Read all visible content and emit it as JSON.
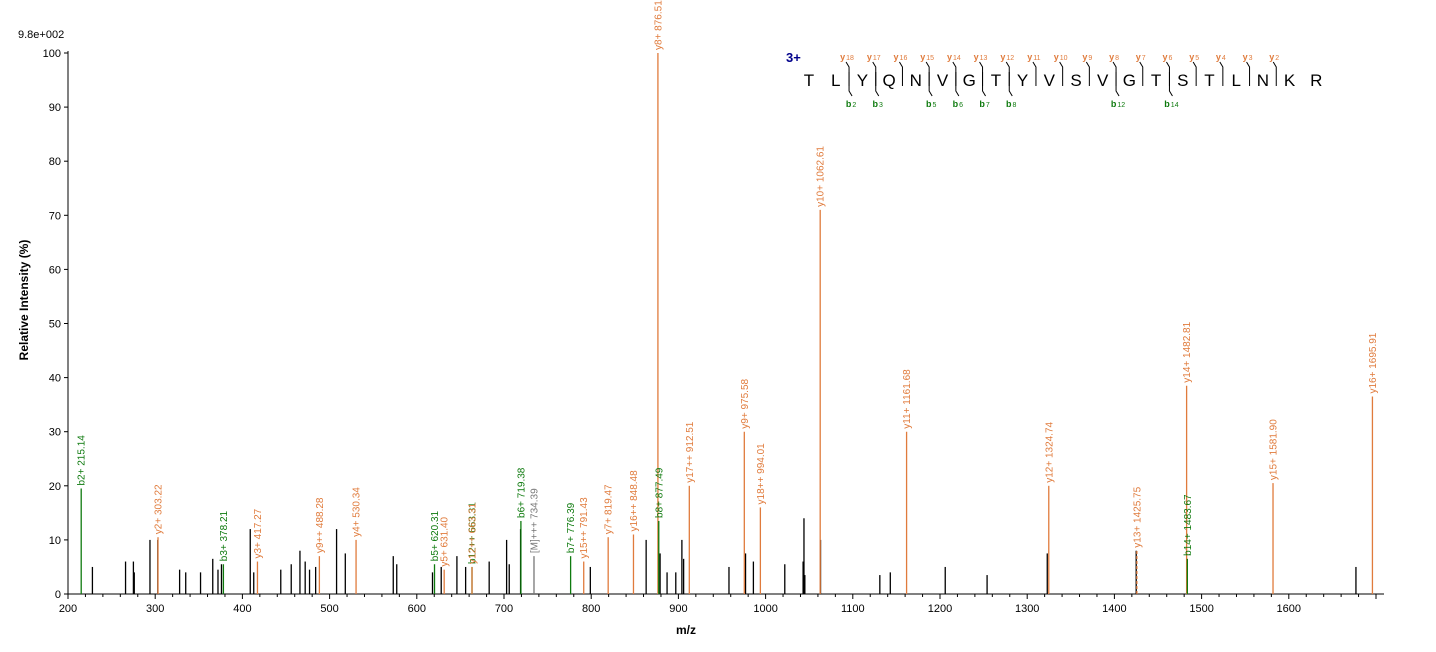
{
  "chart_data": {
    "type": "bar",
    "ylabel": "Relative   Intensity (%)",
    "xlabel": "m/z",
    "scale_label": "9.8e+002",
    "xlim": [
      200,
      1700
    ],
    "ylim": [
      0,
      100
    ],
    "x_ticks": [
      200,
      300,
      400,
      500,
      600,
      700,
      800,
      900,
      1000,
      1100,
      1200,
      1300,
      1400,
      1500,
      1600
    ],
    "y_ticks": [
      0,
      10,
      20,
      30,
      40,
      50,
      60,
      70,
      80,
      90,
      100
    ],
    "colors": {
      "y_ion": "#e07b3c",
      "b_ion": "#0e7a0e",
      "other": "#000000",
      "precursor": "#777777",
      "charge": "#00008b"
    },
    "annotated_peaks": [
      {
        "mz": 215.14,
        "intensity": 19.5,
        "type": "b",
        "label": "b2+ 215.14"
      },
      {
        "mz": 303.22,
        "intensity": 10.5,
        "type": "y",
        "label": "y2+ 303.22"
      },
      {
        "mz": 378.21,
        "intensity": 5.5,
        "type": "b",
        "label": "b3+ 378.21"
      },
      {
        "mz": 417.27,
        "intensity": 6.0,
        "type": "y",
        "label": "y3+ 417.27"
      },
      {
        "mz": 488.28,
        "intensity": 7.0,
        "type": "y",
        "label": "y9++ 488.28"
      },
      {
        "mz": 530.34,
        "intensity": 10.0,
        "type": "y",
        "label": "y4+ 530.34"
      },
      {
        "mz": 620.31,
        "intensity": 5.5,
        "type": "b",
        "label": "b5+ 620.31"
      },
      {
        "mz": 631.4,
        "intensity": 4.5,
        "type": "y",
        "label": "y5+ 631.40"
      },
      {
        "mz": 663.31,
        "intensity": 5.0,
        "type": "b",
        "label": "b12++ 663.31"
      },
      {
        "mz": 663.31,
        "intensity": 5.0,
        "type": "y",
        "label": "y12++ 663.31"
      },
      {
        "mz": 719.38,
        "intensity": 13.5,
        "type": "b",
        "label": "b6+ 719.38"
      },
      {
        "mz": 734.39,
        "intensity": 7.0,
        "type": "m",
        "label": "[M]+++ 734.39"
      },
      {
        "mz": 776.39,
        "intensity": 7.0,
        "type": "b",
        "label": "b7+ 776.39"
      },
      {
        "mz": 791.43,
        "intensity": 6.0,
        "type": "y",
        "label": "y15++ 791.43"
      },
      {
        "mz": 819.47,
        "intensity": 10.5,
        "type": "y",
        "label": "y7+ 819.47"
      },
      {
        "mz": 848.48,
        "intensity": 11.0,
        "type": "y",
        "label": "y16++ 848.48"
      },
      {
        "mz": 876.51,
        "intensity": 100,
        "type": "y",
        "label": "y8+ 876.51"
      },
      {
        "mz": 877.49,
        "intensity": 13.5,
        "type": "b",
        "label": "b8+ 877.49"
      },
      {
        "mz": 912.51,
        "intensity": 20.0,
        "type": "y",
        "label": "y17++ 912.51"
      },
      {
        "mz": 975.58,
        "intensity": 30.0,
        "type": "y",
        "label": "y9+ 975.58"
      },
      {
        "mz": 994.01,
        "intensity": 16.0,
        "type": "y",
        "label": "y18++ 994.01"
      },
      {
        "mz": 1062.61,
        "intensity": 71.0,
        "type": "y",
        "label": "y10+ 1062.61"
      },
      {
        "mz": 1161.68,
        "intensity": 30.0,
        "type": "y",
        "label": "y11+ 1161.68"
      },
      {
        "mz": 1324.74,
        "intensity": 20.0,
        "type": "y",
        "label": "y12+ 1324.74"
      },
      {
        "mz": 1425.75,
        "intensity": 8.0,
        "type": "y",
        "label": "y13+ 1425.75"
      },
      {
        "mz": 1482.81,
        "intensity": 38.5,
        "type": "y",
        "label": "y14+ 1482.81"
      },
      {
        "mz": 1483.67,
        "intensity": 6.5,
        "type": "b",
        "label": "b14+ 1483.67"
      },
      {
        "mz": 1581.9,
        "intensity": 20.5,
        "type": "y",
        "label": "y15+ 1581.90"
      },
      {
        "mz": 1695.91,
        "intensity": 36.5,
        "type": "y",
        "label": "y16+ 1695.91"
      }
    ],
    "unlabeled_peaks": [
      {
        "mz": 228,
        "intensity": 5.0
      },
      {
        "mz": 266,
        "intensity": 6.0
      },
      {
        "mz": 275,
        "intensity": 6.0
      },
      {
        "mz": 276,
        "intensity": 4.0
      },
      {
        "mz": 294,
        "intensity": 10.0
      },
      {
        "mz": 303,
        "intensity": 10.0
      },
      {
        "mz": 328,
        "intensity": 4.5
      },
      {
        "mz": 335,
        "intensity": 4.0
      },
      {
        "mz": 352,
        "intensity": 4.0
      },
      {
        "mz": 366,
        "intensity": 6.5
      },
      {
        "mz": 372,
        "intensity": 4.5
      },
      {
        "mz": 376,
        "intensity": 5.5
      },
      {
        "mz": 409,
        "intensity": 12.0
      },
      {
        "mz": 413,
        "intensity": 4.0
      },
      {
        "mz": 444,
        "intensity": 4.5
      },
      {
        "mz": 456,
        "intensity": 5.5
      },
      {
        "mz": 466,
        "intensity": 8.0
      },
      {
        "mz": 472,
        "intensity": 6.0
      },
      {
        "mz": 477,
        "intensity": 4.5
      },
      {
        "mz": 484,
        "intensity": 5.0
      },
      {
        "mz": 508,
        "intensity": 12.0
      },
      {
        "mz": 518,
        "intensity": 7.5
      },
      {
        "mz": 573,
        "intensity": 7.0
      },
      {
        "mz": 577,
        "intensity": 5.5
      },
      {
        "mz": 618,
        "intensity": 4.0
      },
      {
        "mz": 628,
        "intensity": 5.0
      },
      {
        "mz": 646,
        "intensity": 7.0
      },
      {
        "mz": 656,
        "intensity": 5.0
      },
      {
        "mz": 683,
        "intensity": 6.0
      },
      {
        "mz": 703,
        "intensity": 10.0
      },
      {
        "mz": 706,
        "intensity": 5.5
      },
      {
        "mz": 719,
        "intensity": 12.0
      },
      {
        "mz": 799,
        "intensity": 5.0
      },
      {
        "mz": 863,
        "intensity": 10.0
      },
      {
        "mz": 879,
        "intensity": 7.5
      },
      {
        "mz": 887,
        "intensity": 4.0
      },
      {
        "mz": 897,
        "intensity": 4.0
      },
      {
        "mz": 904,
        "intensity": 10.0
      },
      {
        "mz": 906,
        "intensity": 6.5
      },
      {
        "mz": 958,
        "intensity": 5.0
      },
      {
        "mz": 977,
        "intensity": 7.5
      },
      {
        "mz": 986,
        "intensity": 6.0
      },
      {
        "mz": 1022,
        "intensity": 5.5
      },
      {
        "mz": 1043,
        "intensity": 6.0
      },
      {
        "mz": 1044,
        "intensity": 14.0
      },
      {
        "mz": 1045,
        "intensity": 3.5
      },
      {
        "mz": 1063,
        "intensity": 10.0
      },
      {
        "mz": 1131,
        "intensity": 3.5
      },
      {
        "mz": 1143,
        "intensity": 4.0
      },
      {
        "mz": 1206,
        "intensity": 5.0
      },
      {
        "mz": 1254,
        "intensity": 3.5
      },
      {
        "mz": 1323,
        "intensity": 7.5
      },
      {
        "mz": 1425,
        "intensity": 8.0
      },
      {
        "mz": 1677,
        "intensity": 5.0
      }
    ],
    "sequence": {
      "charge_label": "3+",
      "residues": [
        "T",
        "L",
        "Y",
        "Q",
        "N",
        "V",
        "G",
        "T",
        "Y",
        "V",
        "S",
        "V",
        "G",
        "T",
        "S",
        "T",
        "L",
        "N",
        "K",
        "R"
      ],
      "y_ions": [
        {
          "after": 2,
          "label": "y",
          "sub": "18"
        },
        {
          "after": 3,
          "label": "y",
          "sub": "17"
        },
        {
          "after": 4,
          "label": "y",
          "sub": "16"
        },
        {
          "after": 5,
          "label": "y",
          "sub": "15"
        },
        {
          "after": 6,
          "label": "y",
          "sub": "14"
        },
        {
          "after": 7,
          "label": "y",
          "sub": "13"
        },
        {
          "after": 8,
          "label": "y",
          "sub": "12"
        },
        {
          "after": 9,
          "label": "y",
          "sub": "11"
        },
        {
          "after": 10,
          "label": "y",
          "sub": "10"
        },
        {
          "after": 11,
          "label": "y",
          "sub": "9"
        },
        {
          "after": 12,
          "label": "y",
          "sub": "8"
        },
        {
          "after": 13,
          "label": "y",
          "sub": "7"
        },
        {
          "after": 14,
          "label": "y",
          "sub": "6"
        },
        {
          "after": 15,
          "label": "y",
          "sub": "5"
        },
        {
          "after": 16,
          "label": "y",
          "sub": "4"
        },
        {
          "after": 17,
          "label": "y",
          "sub": "3"
        },
        {
          "after": 18,
          "label": "y",
          "sub": "2"
        }
      ],
      "b_ions": [
        {
          "after": 2,
          "label": "b",
          "sub": "2"
        },
        {
          "after": 3,
          "label": "b",
          "sub": "3"
        },
        {
          "after": 5,
          "label": "b",
          "sub": "5"
        },
        {
          "after": 6,
          "label": "b",
          "sub": "6"
        },
        {
          "after": 7,
          "label": "b",
          "sub": "7"
        },
        {
          "after": 8,
          "label": "b",
          "sub": "8"
        },
        {
          "after": 12,
          "label": "b",
          "sub": "12"
        },
        {
          "after": 14,
          "label": "b",
          "sub": "14"
        }
      ]
    }
  }
}
